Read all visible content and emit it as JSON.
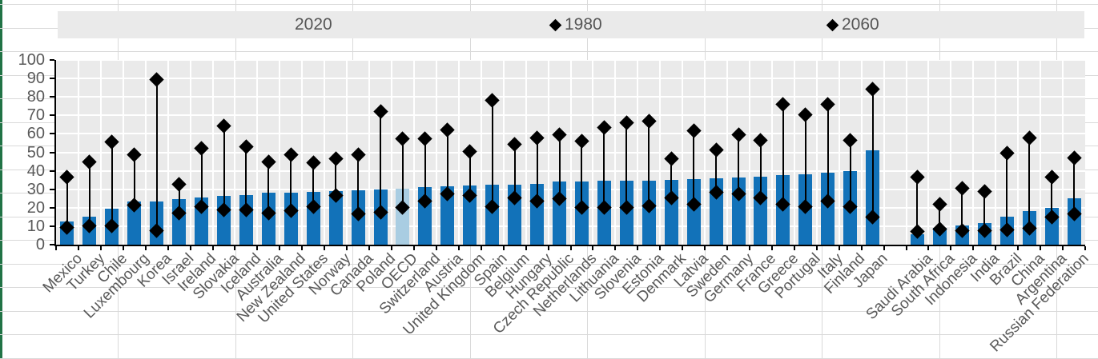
{
  "sheet": {
    "left_border_color": "#217346",
    "gridline_color": "#D9D9D9"
  },
  "chart_data": {
    "type": "bar",
    "title": "",
    "xlabel": "",
    "ylabel": "",
    "ylim": [
      0,
      100
    ],
    "yticks": [
      0,
      10,
      20,
      30,
      40,
      50,
      60,
      70,
      80,
      90,
      100
    ],
    "grid": true,
    "legend_position": "top",
    "plot_background": "#EAEAEA",
    "bar_color": "#1272B9",
    "highlight_category": "OECD",
    "highlight_bar_color": "#A9CDE2",
    "marker_color": "#000000",
    "categories": [
      "Mexico",
      "Turkey",
      "Chile",
      "Luxembourg",
      "Korea",
      "Israel",
      "Ireland",
      "Slovakia",
      "Iceland",
      "Australia",
      "New Zealand",
      "United States",
      "Norway",
      "Canada",
      "Poland",
      "OECD",
      "Switzerland",
      "Austria",
      "United Kingdom",
      "Spain",
      "Belgium",
      "Hungary",
      "Czech Republic",
      "Netherlands",
      "Lithuania",
      "Slovenia",
      "Estonia",
      "Denmark",
      "Latvia",
      "Sweden",
      "Germany",
      "France",
      "Greece",
      "Portugal",
      "Italy",
      "Finland",
      "Japan",
      "",
      "Saudi Arabia",
      "South Africa",
      "Indonesia",
      "India",
      "Brazil",
      "China",
      "Argentina",
      "Russian Federation"
    ],
    "series": [
      {
        "name": "2020",
        "type": "bar",
        "values": [
          12.5,
          15,
          19.5,
          23.5,
          23.5,
          24.5,
          25.5,
          26.5,
          27,
          28,
          28,
          28.5,
          29,
          29.5,
          30,
          30.5,
          31,
          31.5,
          32,
          32.5,
          32.5,
          33,
          34,
          34,
          34.5,
          34.5,
          34.5,
          35,
          35.5,
          36,
          36.5,
          37,
          37.5,
          38,
          39,
          40,
          51,
          null,
          5.5,
          9,
          10.5,
          11.5,
          15,
          18,
          20,
          25
        ]
      },
      {
        "name": "1980",
        "type": "scatter",
        "values": [
          9.5,
          10,
          10,
          21.5,
          7.5,
          17,
          20.5,
          19,
          19,
          17,
          18.5,
          20.5,
          26.5,
          16.5,
          17.5,
          20,
          23.5,
          27.5,
          26.5,
          20.5,
          25.5,
          23.5,
          25,
          20,
          20,
          20,
          21,
          25.5,
          22,
          28.5,
          27.5,
          25.5,
          22,
          20.5,
          23.5,
          20.5,
          15,
          null,
          7,
          8.5,
          7.5,
          7.5,
          8,
          9,
          15,
          16.5
        ]
      },
      {
        "name": "2060",
        "type": "scatter",
        "values": [
          36.5,
          45,
          55.5,
          48.5,
          89.5,
          32.5,
          52,
          64.5,
          53,
          45,
          48.5,
          44.5,
          46.5,
          48.5,
          72,
          57.5,
          57.5,
          62,
          50.5,
          78,
          54.5,
          58,
          59.5,
          56,
          63.5,
          66,
          67,
          46.5,
          61.5,
          51.5,
          59.5,
          56.5,
          76,
          70.5,
          76,
          56.5,
          84,
          null,
          36.5,
          22,
          30.5,
          29,
          49.5,
          58,
          36.5,
          47
        ]
      }
    ]
  }
}
